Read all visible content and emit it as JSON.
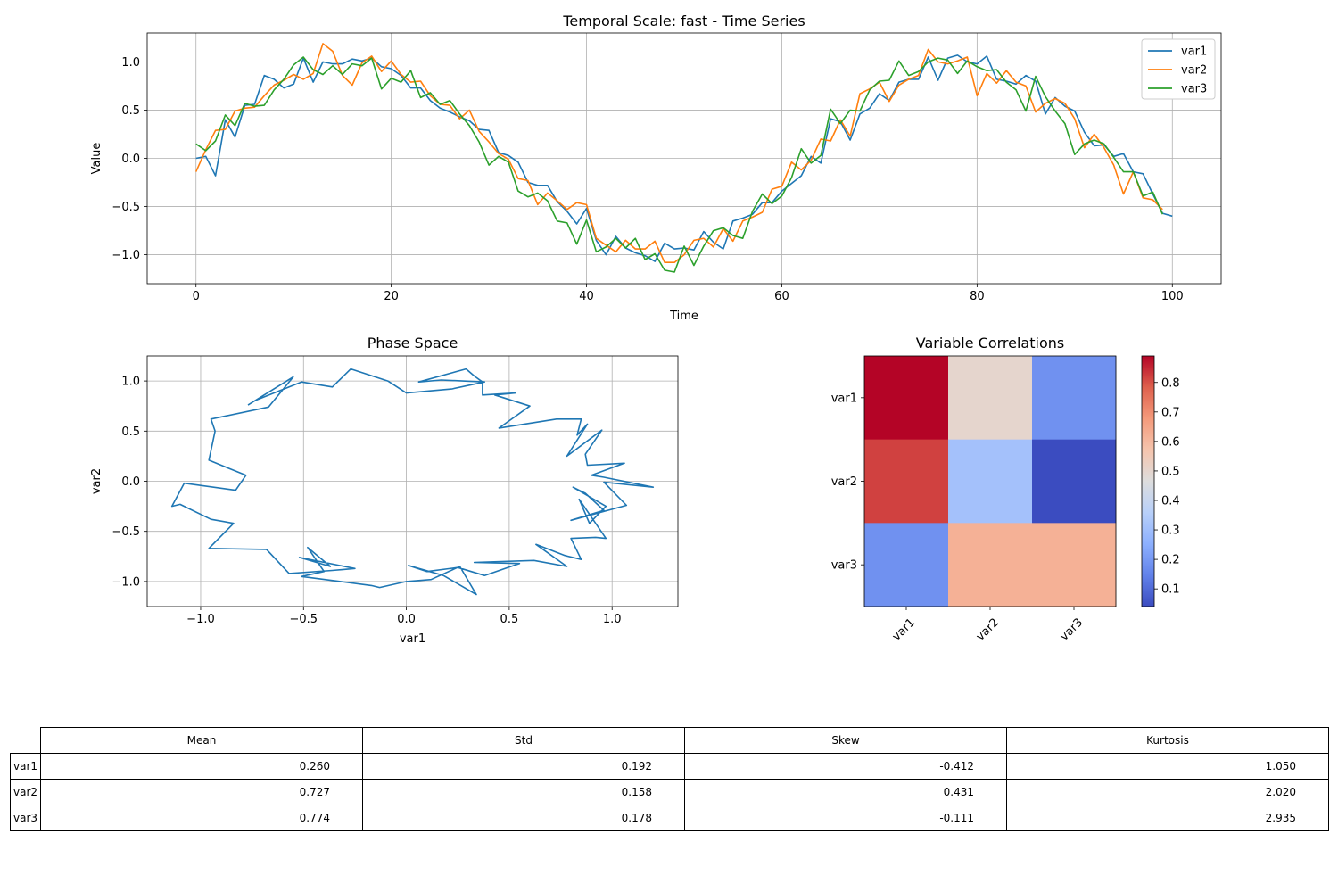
{
  "chart_data": [
    {
      "type": "line",
      "title": "Temporal Scale: fast - Time Series",
      "xlabel": "Time",
      "ylabel": "Value",
      "xlim": [
        -5,
        105
      ],
      "ylim": [
        -1.3,
        1.3
      ],
      "xticks": [
        0,
        20,
        40,
        60,
        80,
        100
      ],
      "yticks": [
        -1.0,
        -0.5,
        0.0,
        0.5,
        1.0
      ],
      "grid": true,
      "legend": "top-right",
      "x_start": 0,
      "x_step": 1,
      "series": [
        {
          "name": "var1",
          "color": "#1f77b4",
          "values": [
            0.0,
            0.02,
            -0.18,
            0.4,
            0.22,
            0.55,
            0.56,
            0.86,
            0.82,
            0.73,
            0.77,
            1.04,
            0.79,
            1.0,
            0.98,
            0.98,
            1.03,
            1.01,
            1.04,
            0.95,
            0.93,
            0.86,
            0.73,
            0.73,
            0.6,
            0.52,
            0.48,
            0.43,
            0.39,
            0.3,
            0.29,
            0.06,
            0.03,
            -0.04,
            -0.25,
            -0.28,
            -0.28,
            -0.45,
            -0.55,
            -0.68,
            -0.52,
            -0.85,
            -1.0,
            -0.81,
            -0.93,
            -0.98,
            -1.01,
            -1.07,
            -0.88,
            -0.94,
            -0.93,
            -0.95,
            -0.76,
            -0.87,
            -0.94,
            -0.65,
            -0.62,
            -0.58,
            -0.46,
            -0.46,
            -0.34,
            -0.26,
            -0.18,
            0.02,
            -0.05,
            0.41,
            0.38,
            0.19,
            0.46,
            0.52,
            0.67,
            0.6,
            0.79,
            0.82,
            0.82,
            1.05,
            0.81,
            1.04,
            1.07,
            1.0,
            0.98,
            1.06,
            0.82,
            0.8,
            0.77,
            0.86,
            0.8,
            0.46,
            0.63,
            0.54,
            0.49,
            0.27,
            0.13,
            0.14,
            0.02,
            0.05,
            -0.14,
            -0.16,
            -0.37,
            -0.57,
            -0.6
          ]
        },
        {
          "name": "var2",
          "color": "#ff7f0e",
          "values": [
            -0.14,
            0.09,
            0.29,
            0.3,
            0.49,
            0.52,
            0.53,
            0.65,
            0.76,
            0.81,
            0.87,
            0.82,
            0.88,
            1.19,
            1.11,
            0.86,
            0.76,
            0.99,
            1.06,
            0.9,
            1.01,
            0.87,
            0.79,
            0.8,
            0.65,
            0.56,
            0.55,
            0.41,
            0.5,
            0.28,
            0.17,
            0.05,
            -0.01,
            -0.21,
            -0.23,
            -0.48,
            -0.36,
            -0.44,
            -0.53,
            -0.46,
            -0.48,
            -0.83,
            -0.9,
            -0.97,
            -0.85,
            -0.94,
            -0.94,
            -0.86,
            -1.08,
            -1.08,
            -1.0,
            -0.85,
            -0.83,
            -0.92,
            -0.73,
            -0.86,
            -0.65,
            -0.61,
            -0.56,
            -0.32,
            -0.29,
            -0.04,
            -0.12,
            -0.02,
            0.2,
            0.18,
            0.4,
            0.23,
            0.67,
            0.72,
            0.79,
            0.59,
            0.76,
            0.82,
            0.86,
            1.13,
            1.0,
            0.98,
            1.01,
            1.05,
            0.65,
            0.88,
            0.78,
            0.91,
            0.79,
            0.75,
            0.48,
            0.57,
            0.62,
            0.57,
            0.41,
            0.11,
            0.25,
            0.11,
            -0.07,
            -0.37,
            -0.14,
            -0.41,
            -0.43,
            -0.53
          ]
        },
        {
          "name": "var3",
          "color": "#2ca02c",
          "values": [
            0.15,
            0.08,
            0.18,
            0.45,
            0.34,
            0.57,
            0.54,
            0.55,
            0.71,
            0.82,
            0.97,
            1.05,
            0.92,
            0.87,
            0.96,
            0.87,
            0.98,
            0.96,
            1.04,
            0.72,
            0.83,
            0.79,
            0.91,
            0.63,
            0.68,
            0.56,
            0.6,
            0.46,
            0.34,
            0.17,
            -0.07,
            0.02,
            -0.04,
            -0.34,
            -0.4,
            -0.36,
            -0.44,
            -0.65,
            -0.67,
            -0.89,
            -0.64,
            -0.97,
            -0.92,
            -0.83,
            -0.93,
            -0.83,
            -1.05,
            -0.99,
            -1.16,
            -1.18,
            -0.91,
            -1.11,
            -0.91,
            -0.75,
            -0.72,
            -0.8,
            -0.83,
            -0.55,
            -0.37,
            -0.47,
            -0.39,
            -0.2,
            0.1,
            -0.05,
            0.03,
            0.51,
            0.36,
            0.5,
            0.49,
            0.71,
            0.8,
            0.81,
            1.01,
            0.86,
            0.9,
            1.0,
            1.04,
            1.02,
            0.88,
            1.01,
            0.95,
            0.91,
            0.92,
            0.79,
            0.71,
            0.49,
            0.85,
            0.64,
            0.49,
            0.36,
            0.04,
            0.15,
            0.19,
            0.15,
            0.01,
            -0.14,
            -0.14,
            -0.39,
            -0.35,
            -0.58
          ]
        }
      ]
    },
    {
      "type": "line",
      "title": "Phase Space",
      "xlabel": "var1",
      "ylabel": "var2",
      "xlim": [
        -1.26,
        1.32
      ],
      "ylim": [
        -1.25,
        1.25
      ],
      "xticks": [
        -1.0,
        -0.5,
        0.0,
        0.5,
        1.0
      ],
      "yticks": [
        -1.0,
        -0.5,
        0.0,
        0.5,
        1.0
      ],
      "grid": true,
      "color": "#1f77b4",
      "points": [
        [
          -0.77,
          0.76
        ],
        [
          -0.55,
          1.04
        ],
        [
          -0.67,
          0.74
        ],
        [
          -0.95,
          0.62
        ],
        [
          -0.93,
          0.5
        ],
        [
          -0.96,
          0.21
        ],
        [
          -0.78,
          0.06
        ],
        [
          -0.83,
          -0.09
        ],
        [
          -1.08,
          -0.02
        ],
        [
          -1.14,
          -0.25
        ],
        [
          -1.1,
          -0.23
        ],
        [
          -0.95,
          -0.38
        ],
        [
          -0.84,
          -0.42
        ],
        [
          -0.96,
          -0.67
        ],
        [
          -0.68,
          -0.68
        ],
        [
          -0.57,
          -0.92
        ],
        [
          -0.36,
          -0.89
        ],
        [
          -0.25,
          -0.87
        ],
        [
          -0.52,
          -0.76
        ],
        [
          -0.37,
          -0.85
        ],
        [
          -0.48,
          -0.66
        ],
        [
          -0.4,
          -0.9
        ],
        [
          -0.51,
          -0.95
        ],
        [
          -0.17,
          -1.04
        ],
        [
          -0.13,
          -1.06
        ],
        [
          0.0,
          -1.0
        ],
        [
          0.12,
          -0.98
        ],
        [
          0.26,
          -0.85
        ],
        [
          0.34,
          -1.13
        ],
        [
          0.18,
          -0.94
        ],
        [
          0.01,
          -0.84
        ],
        [
          0.1,
          -0.9
        ],
        [
          0.25,
          -0.86
        ],
        [
          0.38,
          -0.94
        ],
        [
          0.55,
          -0.82
        ],
        [
          0.33,
          -0.81
        ],
        [
          0.62,
          -0.79
        ],
        [
          0.78,
          -0.85
        ],
        [
          0.63,
          -0.63
        ],
        [
          0.77,
          -0.74
        ],
        [
          0.85,
          -0.78
        ],
        [
          0.8,
          -0.57
        ],
        [
          0.92,
          -0.56
        ],
        [
          0.97,
          -0.57
        ],
        [
          0.84,
          -0.18
        ],
        [
          0.89,
          -0.42
        ],
        [
          0.97,
          -0.25
        ],
        [
          0.81,
          -0.06
        ],
        [
          0.87,
          -0.12
        ],
        [
          0.96,
          -0.29
        ],
        [
          0.8,
          -0.39
        ],
        [
          1.07,
          -0.24
        ],
        [
          0.96,
          -0.01
        ],
        [
          1.2,
          -0.06
        ],
        [
          0.96,
          0.04
        ],
        [
          0.9,
          0.06
        ],
        [
          1.06,
          0.18
        ],
        [
          0.88,
          0.16
        ],
        [
          0.87,
          0.27
        ],
        [
          0.95,
          0.51
        ],
        [
          0.78,
          0.25
        ],
        [
          0.88,
          0.57
        ],
        [
          0.83,
          0.46
        ],
        [
          0.85,
          0.62
        ],
        [
          0.73,
          0.62
        ],
        [
          0.45,
          0.53
        ],
        [
          0.6,
          0.75
        ],
        [
          0.43,
          0.86
        ],
        [
          0.53,
          0.88
        ],
        [
          0.37,
          0.86
        ],
        [
          0.37,
          0.99
        ],
        [
          0.33,
          1.05
        ],
        [
          0.29,
          1.12
        ],
        [
          0.06,
          0.99
        ],
        [
          0.17,
          1.01
        ],
        [
          0.38,
          0.99
        ],
        [
          0.22,
          0.92
        ],
        [
          0.0,
          0.88
        ],
        [
          -0.09,
          1.0
        ],
        [
          -0.27,
          1.12
        ],
        [
          -0.36,
          0.94
        ],
        [
          -0.51,
          0.99
        ],
        [
          -0.73,
          0.81
        ]
      ]
    },
    {
      "type": "heatmap",
      "title": "Variable Correlations",
      "xticks": [
        "var1",
        "var2",
        "var3"
      ],
      "yticks": [
        "var1",
        "var2",
        "var3"
      ],
      "values": [
        [
          0.89,
          0.5,
          0.18
        ],
        [
          0.82,
          0.31,
          0.04
        ],
        [
          0.18,
          0.62,
          0.62
        ]
      ],
      "colorbar_range": [
        0.04,
        0.89
      ],
      "colorbar_ticks": [
        0.1,
        0.2,
        0.3,
        0.4,
        0.5,
        0.6,
        0.7,
        0.8
      ],
      "colormap": "coolwarm"
    },
    {
      "type": "table",
      "columns": [
        "Mean",
        "Std",
        "Skew",
        "Kurtosis"
      ],
      "rows": [
        {
          "label": "var1",
          "cells": [
            "0.260",
            "0.192",
            "-0.412",
            "1.050"
          ]
        },
        {
          "label": "var2",
          "cells": [
            "0.727",
            "0.158",
            "0.431",
            "2.020"
          ]
        },
        {
          "label": "var3",
          "cells": [
            "0.774",
            "0.178",
            "-0.111",
            "2.935"
          ]
        }
      ]
    }
  ]
}
